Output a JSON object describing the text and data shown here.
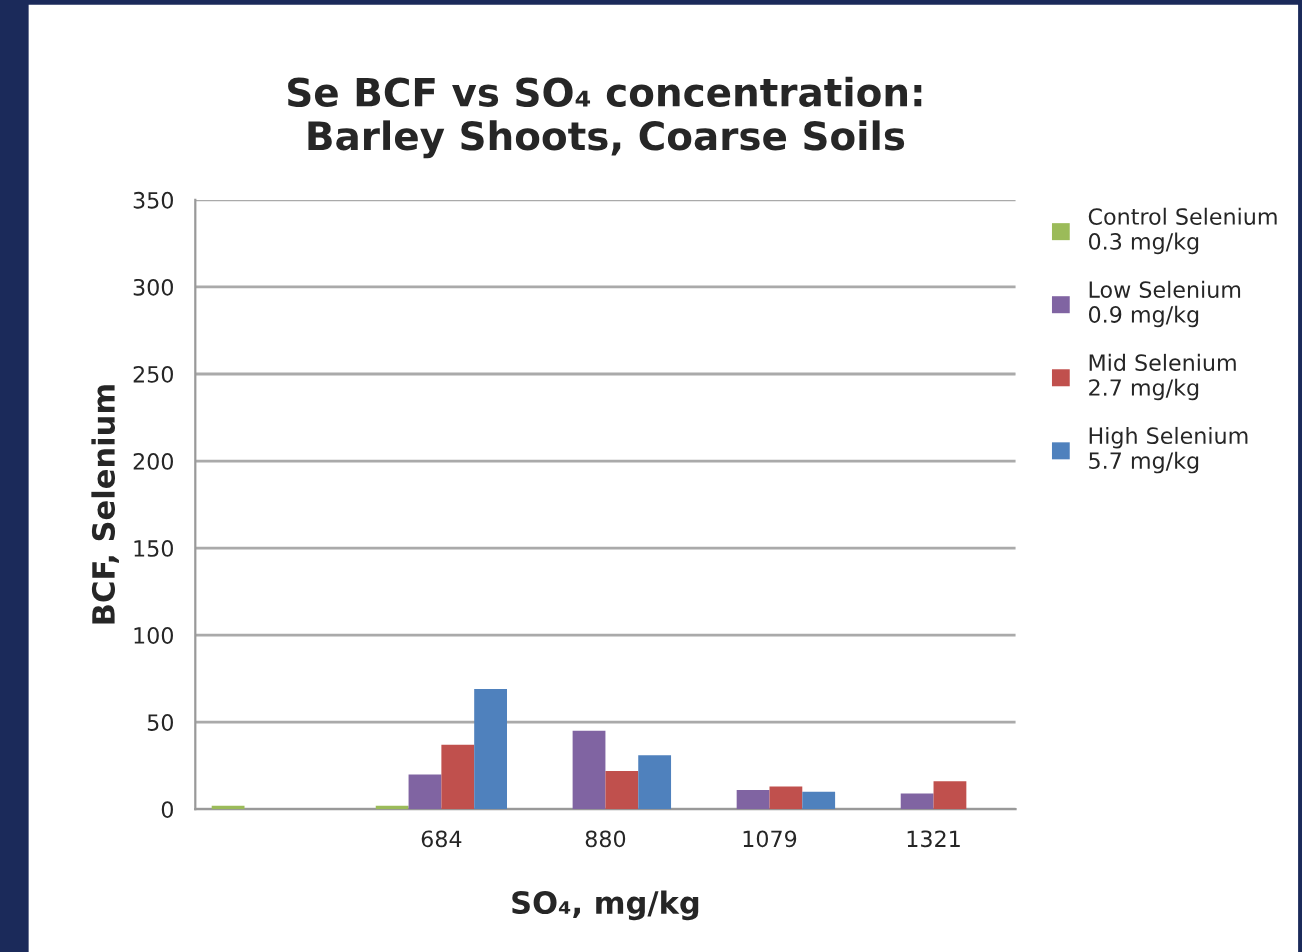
{
  "chart_data": {
    "type": "bar",
    "title": "Se BCF vs SO₄ concentration:\nBarley Shoots, Coarse Soils",
    "xlabel": "SO₄, mg/kg",
    "ylabel": "BCF, Selenium",
    "categories": [
      null,
      "684",
      "880",
      "1079",
      "1321"
    ],
    "series": [
      {
        "name": "Control Selenium\n0.3 mg/kg",
        "color": "#9bbb59",
        "values": [
          2,
          2,
          null,
          null,
          null
        ]
      },
      {
        "name": "Low Selenium\n0.9 mg/kg",
        "color": "#8064a2",
        "values": [
          null,
          20,
          45,
          11,
          9
        ]
      },
      {
        "name": "Mid Selenium\n2.7 mg/kg",
        "color": "#c0504d",
        "values": [
          null,
          37,
          22,
          13,
          16
        ]
      },
      {
        "name": "High Selenium\n5.7 mg/kg",
        "color": "#4f81bd",
        "values": [
          null,
          69,
          31,
          10,
          null
        ]
      }
    ],
    "ylim": [
      0,
      350
    ],
    "yticks": [
      0,
      50,
      100,
      150,
      200,
      250,
      300,
      350
    ],
    "grid": "y",
    "legend": "right"
  }
}
